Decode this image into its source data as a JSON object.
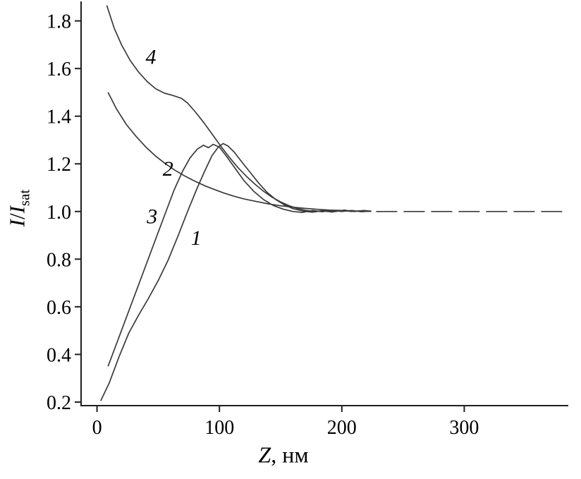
{
  "labels": {
    "y_i1": "I",
    "y_slash": "/",
    "y_i2": "I",
    "y_sub": "sat",
    "x_var": "Z",
    "x_rest": ", нм"
  },
  "chart_data": {
    "type": "line",
    "title": "",
    "xlabel": "Z, нм",
    "ylabel": "I/I_sat",
    "xlim": [
      -13,
      385
    ],
    "ylim": [
      0.185,
      1.87
    ],
    "xticks": [
      0,
      100,
      200,
      300
    ],
    "yticks": [
      0.2,
      0.4,
      0.6,
      0.8,
      1.0,
      1.2,
      1.4,
      1.6,
      1.8
    ],
    "grid": false,
    "legend": "none",
    "line_color": "#3a3a3a",
    "text_color": "#000000",
    "series": [
      {
        "name": "1",
        "dashed": false,
        "points": [
          [
            3,
            0.205
          ],
          [
            10,
            0.28
          ],
          [
            18,
            0.39
          ],
          [
            26,
            0.49
          ],
          [
            34,
            0.565
          ],
          [
            42,
            0.635
          ],
          [
            50,
            0.71
          ],
          [
            58,
            0.795
          ],
          [
            66,
            0.895
          ],
          [
            74,
            1.0
          ],
          [
            82,
            1.1
          ],
          [
            88,
            1.17
          ],
          [
            94,
            1.235
          ],
          [
            99,
            1.27
          ],
          [
            103,
            1.285
          ],
          [
            107,
            1.275
          ],
          [
            112,
            1.25
          ],
          [
            118,
            1.21
          ],
          [
            125,
            1.165
          ],
          [
            132,
            1.12
          ],
          [
            139,
            1.08
          ],
          [
            146,
            1.05
          ],
          [
            153,
            1.028
          ],
          [
            160,
            1.012
          ],
          [
            168,
            1.002
          ],
          [
            176,
            0.997
          ],
          [
            184,
            1.003
          ],
          [
            192,
            0.998
          ],
          [
            200,
            1.004
          ],
          [
            208,
            1.0
          ],
          [
            216,
            1.003
          ],
          [
            224,
            1.0
          ]
        ]
      },
      {
        "name": "2",
        "dashed": false,
        "points": [
          [
            9,
            1.5
          ],
          [
            16,
            1.43
          ],
          [
            24,
            1.365
          ],
          [
            32,
            1.315
          ],
          [
            40,
            1.27
          ],
          [
            48,
            1.232
          ],
          [
            56,
            1.2
          ],
          [
            64,
            1.172
          ],
          [
            72,
            1.148
          ],
          [
            80,
            1.127
          ],
          [
            88,
            1.108
          ],
          [
            96,
            1.092
          ],
          [
            104,
            1.077
          ],
          [
            112,
            1.064
          ],
          [
            120,
            1.053
          ],
          [
            130,
            1.042
          ],
          [
            140,
            1.032
          ],
          [
            150,
            1.024
          ],
          [
            160,
            1.018
          ],
          [
            170,
            1.013
          ],
          [
            180,
            1.009
          ],
          [
            190,
            1.006
          ],
          [
            200,
            1.004
          ],
          [
            210,
            1.002
          ],
          [
            222,
            1.001
          ]
        ]
      },
      {
        "name": "3",
        "dashed": false,
        "points": [
          [
            9,
            0.35
          ],
          [
            16,
            0.445
          ],
          [
            24,
            0.555
          ],
          [
            32,
            0.665
          ],
          [
            40,
            0.775
          ],
          [
            48,
            0.885
          ],
          [
            56,
            0.995
          ],
          [
            63,
            1.09
          ],
          [
            70,
            1.17
          ],
          [
            76,
            1.225
          ],
          [
            82,
            1.262
          ],
          [
            87,
            1.278
          ],
          [
            91,
            1.268
          ],
          [
            95,
            1.282
          ],
          [
            100,
            1.27
          ],
          [
            106,
            1.23
          ],
          [
            113,
            1.18
          ],
          [
            120,
            1.13
          ],
          [
            128,
            1.085
          ],
          [
            136,
            1.05
          ],
          [
            144,
            1.025
          ],
          [
            152,
            1.01
          ],
          [
            160,
            1.0
          ],
          [
            168,
            0.996
          ],
          [
            176,
            1.004
          ],
          [
            184,
            0.999
          ],
          [
            192,
            1.005
          ],
          [
            200,
            1.0
          ],
          [
            208,
            1.004
          ],
          [
            216,
            0.999
          ],
          [
            224,
            1.002
          ]
        ]
      },
      {
        "name": "4",
        "dashed": false,
        "points": [
          [
            8,
            1.865
          ],
          [
            14,
            1.77
          ],
          [
            20,
            1.7
          ],
          [
            27,
            1.635
          ],
          [
            34,
            1.585
          ],
          [
            41,
            1.545
          ],
          [
            48,
            1.515
          ],
          [
            55,
            1.497
          ],
          [
            62,
            1.487
          ],
          [
            69,
            1.475
          ],
          [
            74,
            1.455
          ],
          [
            80,
            1.42
          ],
          [
            87,
            1.375
          ],
          [
            94,
            1.325
          ],
          [
            101,
            1.275
          ],
          [
            108,
            1.228
          ],
          [
            115,
            1.185
          ],
          [
            122,
            1.148
          ],
          [
            129,
            1.115
          ],
          [
            136,
            1.085
          ],
          [
            143,
            1.06
          ],
          [
            150,
            1.04
          ],
          [
            157,
            1.024
          ],
          [
            164,
            1.012
          ],
          [
            171,
            1.004
          ],
          [
            178,
            0.999
          ],
          [
            186,
            1.005
          ],
          [
            194,
            1.0
          ],
          [
            202,
            1.006
          ],
          [
            210,
            1.0
          ],
          [
            218,
            1.004
          ],
          [
            224,
            1.001
          ]
        ]
      },
      {
        "name": "baseline",
        "dashed": true,
        "points": [
          [
            228,
            1.0
          ],
          [
            383,
            1.0
          ]
        ]
      }
    ],
    "annotations": [
      {
        "text": "4",
        "x": 44,
        "y": 1.62
      },
      {
        "text": "2",
        "x": 58,
        "y": 1.15
      },
      {
        "text": "3",
        "x": 45,
        "y": 0.95
      },
      {
        "text": "1",
        "x": 81,
        "y": 0.86
      }
    ]
  }
}
